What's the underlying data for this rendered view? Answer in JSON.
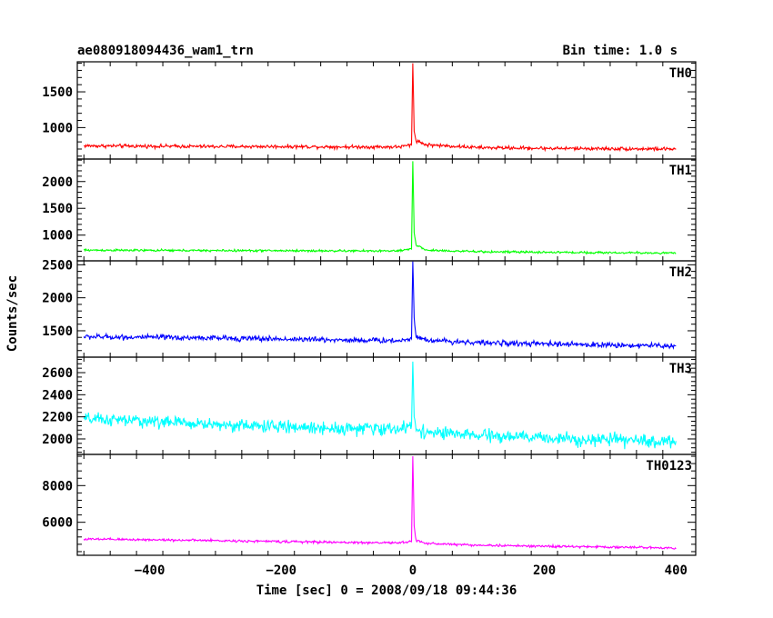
{
  "chart_data": {
    "type": "line",
    "title": "ae080918094436_wam1_trn",
    "subtitle": "Bin time: 1.0 s",
    "xlabel": "Time [sec] 0 = 2008/09/18 09:44:36",
    "ylabel": "Counts/sec",
    "xlim": [
      -510,
      430
    ],
    "x_ticks": [
      -400,
      -200,
      0,
      200,
      400
    ],
    "x_tick_labels": [
      "−400",
      "−200",
      "0",
      "200",
      "400"
    ],
    "grid": false,
    "panels": [
      {
        "name": "TH0",
        "color": "#ff0000",
        "ylim": [
          560,
          1920
        ],
        "y_ticks": [
          1000,
          1500
        ],
        "y_tick_labels": [
          "1000",
          "1500"
        ],
        "x": [
          -500,
          -400,
          -300,
          -200,
          -100,
          -20,
          -2,
          0,
          2,
          5,
          20,
          100,
          200,
          300,
          400
        ],
        "values": [
          745,
          740,
          735,
          735,
          730,
          730,
          760,
          1900,
          950,
          820,
          760,
          720,
          710,
          705,
          700
        ],
        "noise_amplitude": 30
      },
      {
        "name": "TH1",
        "color": "#00ff00",
        "ylim": [
          520,
          2420
        ],
        "y_ticks": [
          1000,
          1500,
          2000
        ],
        "y_tick_labels": [
          "1000",
          "1500",
          "2000"
        ],
        "x": [
          -500,
          -400,
          -300,
          -200,
          -100,
          -20,
          -2,
          0,
          2,
          5,
          20,
          100,
          200,
          300,
          400
        ],
        "values": [
          720,
          715,
          712,
          710,
          705,
          705,
          740,
          2380,
          1050,
          820,
          720,
          690,
          680,
          672,
          665
        ],
        "noise_amplitude": 25
      },
      {
        "name": "TH2",
        "color": "#0000ff",
        "ylim": [
          1100,
          2560
        ],
        "y_ticks": [
          1500,
          2000,
          2500
        ],
        "y_tick_labels": [
          "1500",
          "2000",
          "2500"
        ],
        "x": [
          -500,
          -400,
          -300,
          -200,
          -100,
          -20,
          -2,
          0,
          2,
          5,
          20,
          100,
          200,
          300,
          400
        ],
        "values": [
          1410,
          1400,
          1390,
          1375,
          1360,
          1350,
          1380,
          2550,
          1700,
          1420,
          1360,
          1320,
          1300,
          1285,
          1270
        ],
        "noise_amplitude": 50
      },
      {
        "name": "TH3",
        "color": "#00ffff",
        "ylim": [
          1860,
          2740
        ],
        "y_ticks": [
          2000,
          2200,
          2400,
          2600
        ],
        "y_tick_labels": [
          "2000",
          "2200",
          "2400",
          "2600"
        ],
        "x": [
          -500,
          -400,
          -300,
          -200,
          -100,
          -20,
          -2,
          0,
          2,
          5,
          20,
          100,
          200,
          300,
          400
        ],
        "values": [
          2180,
          2160,
          2130,
          2110,
          2095,
          2090,
          2120,
          2700,
          2200,
          2100,
          2060,
          2030,
          2010,
          1990,
          1975
        ],
        "noise_amplitude": 70
      },
      {
        "name": "TH0123",
        "color": "#ff00ff",
        "ylim": [
          4200,
          9700
        ],
        "y_ticks": [
          6000,
          8000
        ],
        "y_tick_labels": [
          "6000",
          "8000"
        ],
        "x": [
          -500,
          -400,
          -300,
          -200,
          -100,
          -20,
          -2,
          0,
          2,
          5,
          20,
          100,
          200,
          300,
          400
        ],
        "values": [
          5080,
          5050,
          5000,
          4950,
          4900,
          4880,
          4950,
          9600,
          5800,
          5000,
          4850,
          4750,
          4690,
          4650,
          4600
        ],
        "noise_amplitude": 80
      }
    ]
  }
}
